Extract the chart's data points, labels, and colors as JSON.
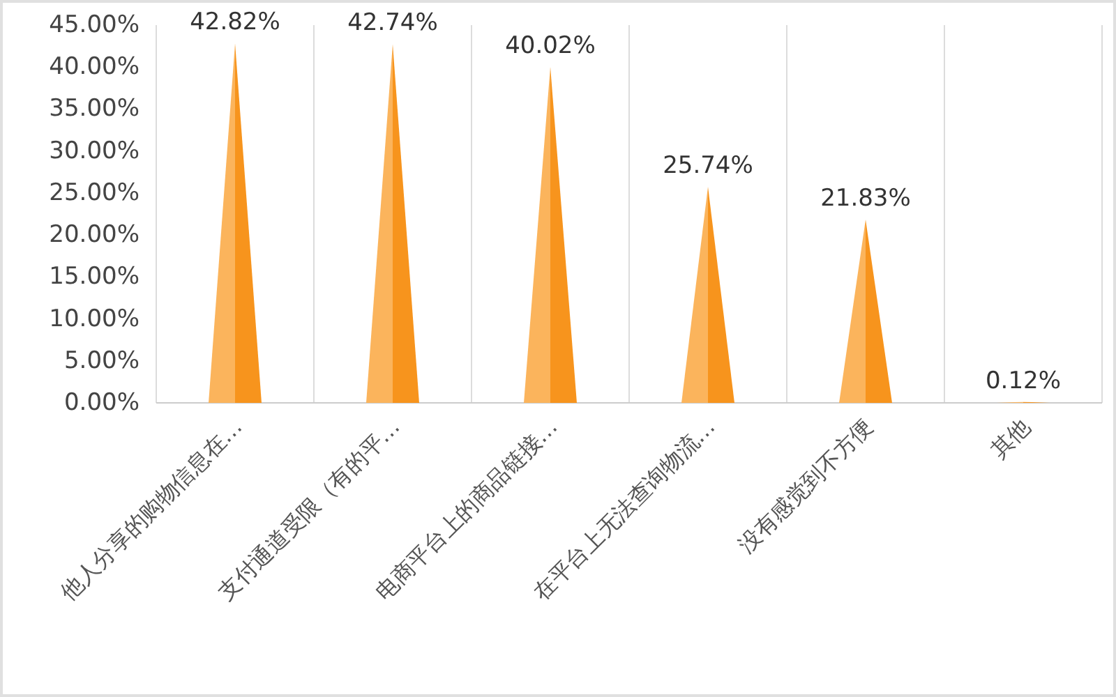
{
  "chart_data": {
    "type": "bar",
    "categories": [
      "他人分享的购物信息在…",
      "支付通道受限（有的平…",
      "电商平台上的商品链接…",
      "在平台上无法查询物流…",
      "没有感觉到不方便",
      "其他"
    ],
    "values": [
      42.82,
      42.74,
      40.02,
      25.74,
      21.83,
      0.12
    ],
    "value_labels": [
      "42.82%",
      "42.74%",
      "40.02%",
      "25.74%",
      "21.83%",
      "0.12%"
    ],
    "color": "#f7941d",
    "ylim": [
      0,
      45
    ],
    "yticks": [
      {
        "value": 0,
        "label": "0.00%"
      },
      {
        "value": 5,
        "label": "5.00%"
      },
      {
        "value": 10,
        "label": "10.00%"
      },
      {
        "value": 15,
        "label": "15.00%"
      },
      {
        "value": 20,
        "label": "20.00%"
      },
      {
        "value": 25,
        "label": "25.00%"
      },
      {
        "value": 30,
        "label": "30.00%"
      },
      {
        "value": 35,
        "label": "35.00%"
      },
      {
        "value": 40,
        "label": "40.00%"
      },
      {
        "value": 45,
        "label": "45.00%"
      }
    ],
    "grid": "x"
  }
}
